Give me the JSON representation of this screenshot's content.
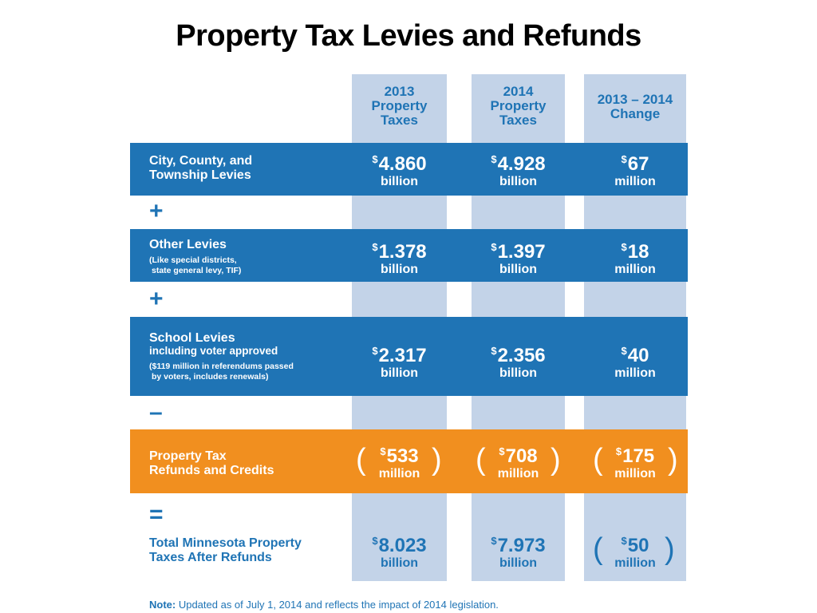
{
  "title": "Property Tax Levies and Refunds",
  "columns": [
    {
      "line1": "2013",
      "line2": "Property",
      "line3": "Taxes"
    },
    {
      "line1": "2014",
      "line2": "Property",
      "line3": "Taxes"
    },
    {
      "line1": "2013 – 2014",
      "line2": "Change"
    }
  ],
  "rows": [
    {
      "label1": "City, County, and",
      "label2": "Township Levies",
      "values": [
        {
          "cur": "$",
          "amount": "4.860",
          "unit": "billion"
        },
        {
          "cur": "$",
          "amount": "4.928",
          "unit": "billion"
        },
        {
          "cur": "$",
          "amount": "67",
          "unit": "million"
        }
      ]
    },
    {
      "op": "+"
    },
    {
      "label1": "Other Levies",
      "sub1": "(Like special districts,",
      "sub2": "state general levy, TIF)",
      "values": [
        {
          "cur": "$",
          "amount": "1.378",
          "unit": "billion"
        },
        {
          "cur": "$",
          "amount": "1.397",
          "unit": "billion"
        },
        {
          "cur": "$",
          "amount": "18",
          "unit": "million"
        }
      ]
    },
    {
      "op": "+"
    },
    {
      "label1": "School Levies",
      "label2": "including voter approved",
      "sub1": "($119 million in referendums passed",
      "sub2": "by voters, includes renewals)",
      "values": [
        {
          "cur": "$",
          "amount": "2.317",
          "unit": "billion"
        },
        {
          "cur": "$",
          "amount": "2.356",
          "unit": "billion"
        },
        {
          "cur": "$",
          "amount": "40",
          "unit": "million"
        }
      ]
    },
    {
      "op": "–"
    },
    {
      "label1": "Property Tax",
      "label2": "Refunds and Credits",
      "values": [
        {
          "cur": "$",
          "amount": "533",
          "unit": "million",
          "open": "(",
          "close": ")"
        },
        {
          "cur": "$",
          "amount": "708",
          "unit": "million",
          "open": "(",
          "close": ")"
        },
        {
          "cur": "$",
          "amount": "175",
          "unit": "million",
          "open": "(",
          "close": ")"
        }
      ]
    },
    {
      "op": "="
    },
    {
      "label1": "Total Minnesota Property",
      "label2": "Taxes After Refunds",
      "values": [
        {
          "cur": "$",
          "amount": "8.023",
          "unit": "billion"
        },
        {
          "cur": "$",
          "amount": "7.973",
          "unit": "billion"
        },
        {
          "cur": "$",
          "amount": "50",
          "unit": "million",
          "open": "(",
          "close": ")"
        }
      ]
    }
  ],
  "note": {
    "prefix": "Note:",
    "text": " Updated as of July 1, 2014 and reflects the impact of 2014 legislation."
  },
  "colors": {
    "blue": "#1f74b5",
    "orange": "#f18f1f",
    "column_shade": "#c3d3e8"
  }
}
